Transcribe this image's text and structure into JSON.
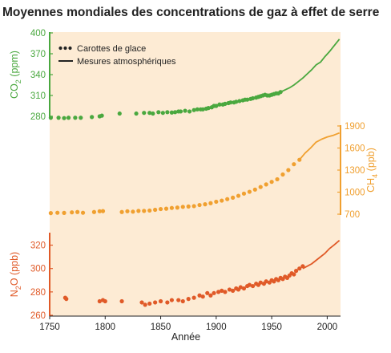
{
  "chart_data": {
    "type": "scatter",
    "title": "Moyennes mondiales des concentrations de gaz à effet de serre",
    "xlabel": "Année",
    "xlim": [
      1750,
      2012
    ],
    "x_ticks": [
      1750,
      1800,
      1850,
      1900,
      1950,
      2000
    ],
    "grid": false,
    "legend": {
      "placement": "top-left",
      "entries": [
        {
          "label": "Carottes de glace",
          "marker": "dots"
        },
        {
          "label": "Mesures atmosphériques",
          "marker": "line"
        }
      ]
    },
    "panels": [
      {
        "id": "co2",
        "gas_label": "CO",
        "gas_subscript": "2",
        "unit": "(ppm)",
        "axis_side": "left",
        "color": "#4aa83f",
        "ylim": [
          280,
          400
        ],
        "y_ticks": [
          280,
          310,
          340,
          370,
          400
        ],
        "ice_core": [
          [
            1751,
            278
          ],
          [
            1758,
            278
          ],
          [
            1763,
            277.5
          ],
          [
            1767,
            278
          ],
          [
            1773,
            278
          ],
          [
            1778,
            278
          ],
          [
            1788,
            279
          ],
          [
            1795,
            280
          ],
          [
            1797,
            281
          ],
          [
            1813,
            284
          ],
          [
            1828,
            284
          ],
          [
            1835,
            285
          ],
          [
            1840,
            285
          ],
          [
            1843,
            284
          ],
          [
            1848,
            286
          ],
          [
            1852,
            285
          ],
          [
            1856,
            286
          ],
          [
            1860,
            285.5
          ],
          [
            1863,
            286
          ],
          [
            1866,
            287
          ],
          [
            1868,
            287
          ],
          [
            1872,
            288
          ],
          [
            1876,
            287
          ],
          [
            1880,
            289
          ],
          [
            1883,
            290
          ],
          [
            1886,
            290
          ],
          [
            1888,
            290
          ],
          [
            1891,
            291
          ],
          [
            1893,
            292
          ],
          [
            1896,
            293
          ],
          [
            1898,
            295
          ],
          [
            1900,
            295
          ],
          [
            1903,
            297
          ],
          [
            1906,
            297
          ],
          [
            1908,
            298
          ],
          [
            1911,
            299
          ],
          [
            1913,
            300
          ],
          [
            1916,
            300
          ],
          [
            1918,
            301
          ],
          [
            1921,
            302
          ],
          [
            1924,
            303
          ],
          [
            1926,
            304
          ],
          [
            1928,
            304
          ],
          [
            1931,
            305
          ],
          [
            1933,
            306
          ],
          [
            1936,
            307
          ],
          [
            1938,
            308
          ],
          [
            1940,
            309
          ],
          [
            1942,
            310
          ],
          [
            1944,
            311
          ],
          [
            1946,
            310
          ],
          [
            1948,
            310
          ],
          [
            1950,
            311
          ],
          [
            1952,
            312
          ],
          [
            1954,
            313
          ],
          [
            1956,
            313
          ],
          [
            1958,
            315
          ]
        ],
        "atmospheric": [
          [
            1958,
            315
          ],
          [
            1962,
            318
          ],
          [
            1966,
            321
          ],
          [
            1970,
            325
          ],
          [
            1974,
            330
          ],
          [
            1978,
            335
          ],
          [
            1982,
            341
          ],
          [
            1986,
            347
          ],
          [
            1990,
            354
          ],
          [
            1994,
            358
          ],
          [
            1998,
            366
          ],
          [
            2002,
            373
          ],
          [
            2006,
            381
          ],
          [
            2011,
            391
          ]
        ]
      },
      {
        "id": "ch4",
        "gas_label": "CH",
        "gas_subscript": "4",
        "unit": "(ppb)",
        "axis_side": "right",
        "color": "#f0a030",
        "ylim": [
          700,
          1900
        ],
        "y_ticks": [
          700,
          1000,
          1300,
          1600,
          1900
        ],
        "ice_core": [
          [
            1751,
            715
          ],
          [
            1757,
            720
          ],
          [
            1763,
            718
          ],
          [
            1770,
            725
          ],
          [
            1775,
            730
          ],
          [
            1780,
            720
          ],
          [
            1790,
            730
          ],
          [
            1795,
            740
          ],
          [
            1798,
            742
          ],
          [
            1815,
            730
          ],
          [
            1820,
            740
          ],
          [
            1825,
            735
          ],
          [
            1830,
            745
          ],
          [
            1835,
            745
          ],
          [
            1840,
            750
          ],
          [
            1845,
            760
          ],
          [
            1850,
            770
          ],
          [
            1855,
            775
          ],
          [
            1860,
            785
          ],
          [
            1865,
            790
          ],
          [
            1870,
            800
          ],
          [
            1875,
            805
          ],
          [
            1880,
            810
          ],
          [
            1885,
            825
          ],
          [
            1890,
            835
          ],
          [
            1895,
            850
          ],
          [
            1900,
            870
          ],
          [
            1905,
            885
          ],
          [
            1910,
            905
          ],
          [
            1915,
            925
          ],
          [
            1920,
            950
          ],
          [
            1925,
            980
          ],
          [
            1930,
            1005
          ],
          [
            1935,
            1035
          ],
          [
            1940,
            1070
          ],
          [
            1945,
            1105
          ],
          [
            1950,
            1140
          ],
          [
            1955,
            1175
          ],
          [
            1960,
            1240
          ],
          [
            1965,
            1300
          ],
          [
            1970,
            1380
          ],
          [
            1975,
            1440
          ]
        ],
        "atmospheric": [
          [
            1975,
            1440
          ],
          [
            1980,
            1530
          ],
          [
            1985,
            1600
          ],
          [
            1990,
            1680
          ],
          [
            1995,
            1720
          ],
          [
            2000,
            1750
          ],
          [
            2005,
            1770
          ],
          [
            2011,
            1805
          ]
        ]
      },
      {
        "id": "n2o",
        "gas_label": "N",
        "gas_subscript": "2",
        "gas_suffix": "O",
        "unit": "(ppb)",
        "axis_side": "left",
        "color": "#e05a28",
        "ylim": [
          260,
          330
        ],
        "y_ticks": [
          260,
          280,
          300,
          320
        ],
        "ice_core": [
          [
            1764,
            275
          ],
          [
            1765,
            274
          ],
          [
            1795,
            272
          ],
          [
            1798,
            273
          ],
          [
            1800,
            272
          ],
          [
            1815,
            272
          ],
          [
            1833,
            271
          ],
          [
            1836,
            269
          ],
          [
            1840,
            270
          ],
          [
            1845,
            271
          ],
          [
            1850,
            272
          ],
          [
            1856,
            271
          ],
          [
            1860,
            273
          ],
          [
            1866,
            273
          ],
          [
            1870,
            272
          ],
          [
            1875,
            274
          ],
          [
            1880,
            275
          ],
          [
            1885,
            277
          ],
          [
            1888,
            276
          ],
          [
            1892,
            279
          ],
          [
            1895,
            277
          ],
          [
            1898,
            279
          ],
          [
            1902,
            280
          ],
          [
            1905,
            281
          ],
          [
            1908,
            280
          ],
          [
            1912,
            282
          ],
          [
            1915,
            281
          ],
          [
            1918,
            283
          ],
          [
            1920,
            282
          ],
          [
            1922,
            284
          ],
          [
            1925,
            283
          ],
          [
            1928,
            285
          ],
          [
            1930,
            286
          ],
          [
            1933,
            285
          ],
          [
            1936,
            287
          ],
          [
            1938,
            286
          ],
          [
            1940,
            288
          ],
          [
            1943,
            287
          ],
          [
            1945,
            289
          ],
          [
            1948,
            288
          ],
          [
            1950,
            290
          ],
          [
            1952,
            289
          ],
          [
            1954,
            291
          ],
          [
            1956,
            290
          ],
          [
            1958,
            292
          ],
          [
            1960,
            291
          ],
          [
            1962,
            293
          ],
          [
            1964,
            292
          ],
          [
            1966,
            294
          ],
          [
            1968,
            296
          ],
          [
            1970,
            295
          ],
          [
            1972,
            298
          ],
          [
            1975,
            300
          ],
          [
            1978,
            302
          ]
        ],
        "atmospheric": [
          [
            1978,
            300
          ],
          [
            1982,
            302
          ],
          [
            1986,
            304
          ],
          [
            1990,
            307
          ],
          [
            1994,
            310
          ],
          [
            1998,
            313
          ],
          [
            2002,
            317
          ],
          [
            2006,
            320
          ],
          [
            2011,
            324
          ]
        ]
      }
    ]
  }
}
